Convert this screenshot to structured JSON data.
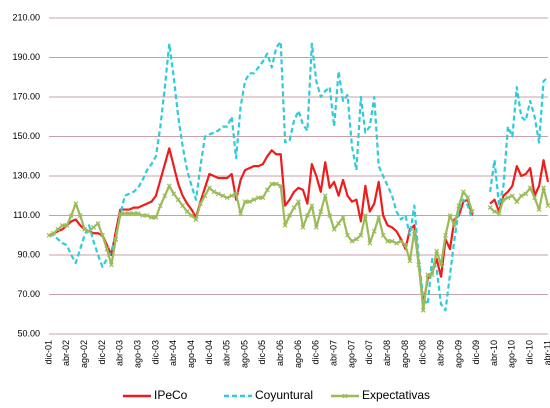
{
  "chart_data": {
    "type": "line",
    "categories": [
      "dic-01",
      null,
      null,
      null,
      "abr-02",
      null,
      null,
      null,
      "ago-02",
      null,
      null,
      null,
      "dic-02",
      null,
      null,
      null,
      "abr-03",
      null,
      null,
      null,
      "ago-03",
      null,
      null,
      null,
      "dic-03",
      null,
      null,
      null,
      "abr-04",
      null,
      null,
      null,
      "ago-04",
      null,
      null,
      null,
      "dic-04",
      null,
      null,
      null,
      "abr-05",
      null,
      null,
      null,
      "ago-05",
      null,
      null,
      null,
      "dic-05",
      null,
      null,
      null,
      "abr-06",
      null,
      null,
      null,
      "ago-06",
      null,
      null,
      null,
      "dic-06",
      null,
      null,
      null,
      "abr-07",
      null,
      null,
      null,
      "ago-07",
      null,
      null,
      null,
      "dic-07",
      null,
      null,
      null,
      "abr-08",
      null,
      null,
      null,
      "ago-08",
      null,
      null,
      null,
      "dic-08",
      null,
      null,
      null,
      "abr-09",
      null,
      null,
      null,
      "ago-09",
      null,
      null,
      null,
      "dic-09",
      null,
      null,
      null,
      "abr-10",
      null,
      null,
      null,
      "ago-10",
      null,
      null,
      null,
      "dic-10",
      null,
      null,
      null,
      "abr-11"
    ],
    "series": [
      {
        "name": "IPeCo",
        "color": "#ee1c1c",
        "style": "solid",
        "values": [
          100,
          101,
          102,
          103,
          105,
          107,
          108,
          105,
          103,
          102,
          101,
          101,
          100,
          95,
          90,
          102,
          113,
          113,
          113,
          114,
          114,
          115,
          116,
          117,
          120,
          128,
          136,
          144,
          135,
          126,
          120,
          116,
          113,
          109,
          117,
          124,
          131,
          130,
          129,
          129,
          129,
          131,
          118,
          128,
          133,
          134,
          135,
          135,
          136,
          140,
          143,
          141,
          141,
          115,
          118,
          122,
          124,
          123,
          116,
          136,
          130,
          122,
          137,
          124,
          127,
          120,
          128,
          120,
          117,
          118,
          107,
          125,
          112,
          116,
          127,
          110,
          105,
          104,
          102,
          98,
          93,
          103,
          105,
          85,
          65,
          78,
          81,
          88,
          79,
          98,
          93,
          108,
          110,
          117,
          118,
          110,
          null,
          null,
          null,
          116,
          118,
          112,
          120,
          122,
          125,
          135,
          130,
          131,
          134,
          120,
          125,
          138,
          127
        ]
      },
      {
        "name": "Coyuntural",
        "color": "#2ecbd8",
        "style": "dashed",
        "values": [
          100,
          100,
          98,
          96,
          95,
          90,
          86,
          93,
          100,
          105,
          97,
          90,
          84,
          88,
          92,
          100,
          110,
          120,
          121,
          122,
          124,
          128,
          133,
          136,
          140,
          155,
          175,
          197,
          180,
          160,
          145,
          133,
          125,
          118,
          135,
          150,
          151,
          152,
          153,
          155,
          155,
          160,
          139,
          165,
          178,
          182,
          182,
          185,
          188,
          192,
          185,
          195,
          198,
          147,
          148,
          158,
          163,
          156,
          153,
          197,
          178,
          170,
          173,
          175,
          155,
          183,
          168,
          171,
          145,
          133,
          170,
          152,
          155,
          170,
          135,
          130,
          125,
          120,
          112,
          108,
          110,
          100,
          115,
          88,
          68,
          65,
          88,
          83,
          65,
          62,
          80,
          98,
          113,
          118,
          115,
          108,
          null,
          null,
          null,
          122,
          138,
          115,
          125,
          155,
          150,
          175,
          160,
          158,
          168,
          160,
          147,
          178,
          180
        ]
      },
      {
        "name": "Expectativas",
        "color": "#9bbb59",
        "style": "solid",
        "marker": "x",
        "values": [
          100,
          101,
          103,
          105,
          105,
          110,
          116,
          110,
          103,
          102,
          104,
          106,
          100,
          93,
          85,
          98,
          111,
          111,
          111,
          111,
          111,
          110,
          110,
          109,
          109,
          115,
          120,
          125,
          121,
          118,
          115,
          112,
          110,
          108,
          116,
          120,
          124,
          122,
          121,
          120,
          119,
          120,
          121,
          111,
          117,
          117,
          118,
          119,
          119,
          123,
          126,
          126,
          125,
          105,
          110,
          114,
          117,
          104,
          110,
          115,
          104,
          112,
          120,
          110,
          103,
          106,
          109,
          100,
          97,
          98,
          100,
          110,
          96,
          102,
          109,
          100,
          97,
          97,
          96,
          97,
          95,
          87,
          102,
          85,
          62,
          80,
          80,
          92,
          85,
          100,
          110,
          105,
          115,
          122,
          119,
          112,
          null,
          null,
          null,
          114,
          112,
          111,
          118,
          119,
          120,
          117,
          120,
          121,
          124,
          119,
          113,
          124,
          115
        ]
      }
    ],
    "ylim": [
      50,
      210
    ],
    "yticks": [
      {
        "value": 50,
        "label": "50.00"
      },
      {
        "value": 70,
        "label": "70.00"
      },
      {
        "value": 90,
        "label": "90.00"
      },
      {
        "value": 110,
        "label": "110.00"
      },
      {
        "value": 130,
        "label": "130.00"
      },
      {
        "value": 150,
        "label": "150.00"
      },
      {
        "value": 170,
        "label": "170.00"
      },
      {
        "value": 190,
        "label": "190.00"
      },
      {
        "value": 210,
        "label": "210.00"
      }
    ],
    "grid": true,
    "grid_color": "#c9a0a8",
    "legend": "bottom"
  }
}
